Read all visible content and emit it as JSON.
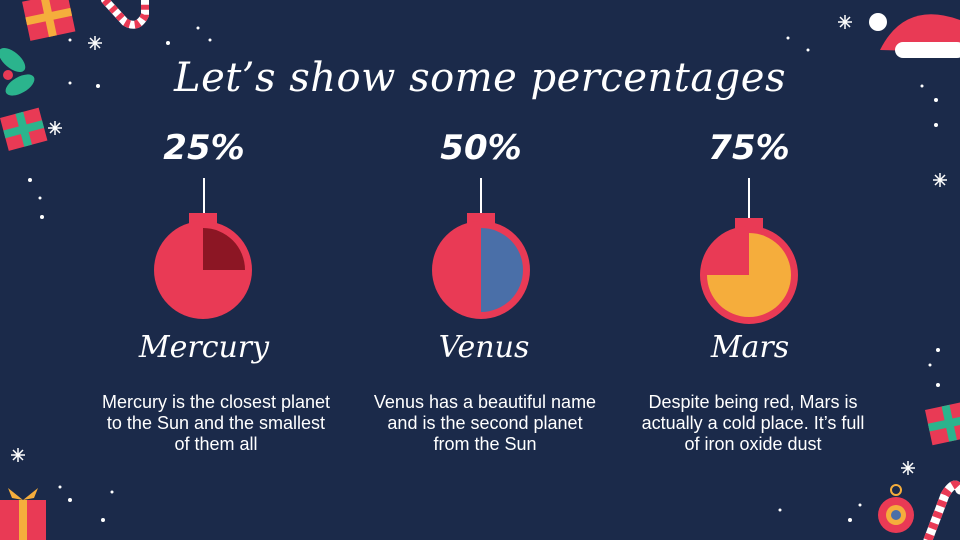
{
  "title": "Let’s show some percentages",
  "chart_data": {
    "type": "pie",
    "items": [
      {
        "label": "Mercury",
        "percent_label": "25%",
        "value": 25,
        "fill": "#e93a55",
        "slice_color": "#8c1624",
        "description": "Mercury is the closest planet to the Sun and the smallest of them all"
      },
      {
        "label": "Venus",
        "percent_label": "50%",
        "value": 50,
        "fill": "#e93a55",
        "slice_color": "#4a6fa8",
        "description": "Venus has a beautiful name and is the second planet from the Sun"
      },
      {
        "label": "Mars",
        "percent_label": "75%",
        "value": 75,
        "fill": "#e93a55",
        "slice_color": "#f5ad3c",
        "description": "Despite being red, Mars is actually a cold place. It’s full of iron oxide dust"
      }
    ]
  },
  "colors": {
    "background": "#1b2a4a",
    "text": "#ffffff",
    "accent_red": "#e93a55",
    "accent_green": "#2bb48d",
    "accent_yellow": "#f5ad3c"
  },
  "decorations": [
    "gift-icon",
    "candy-cane-icon",
    "snowflake-icon",
    "holly-icon",
    "santa-hat-icon",
    "ornament-icon",
    "star-icon"
  ]
}
